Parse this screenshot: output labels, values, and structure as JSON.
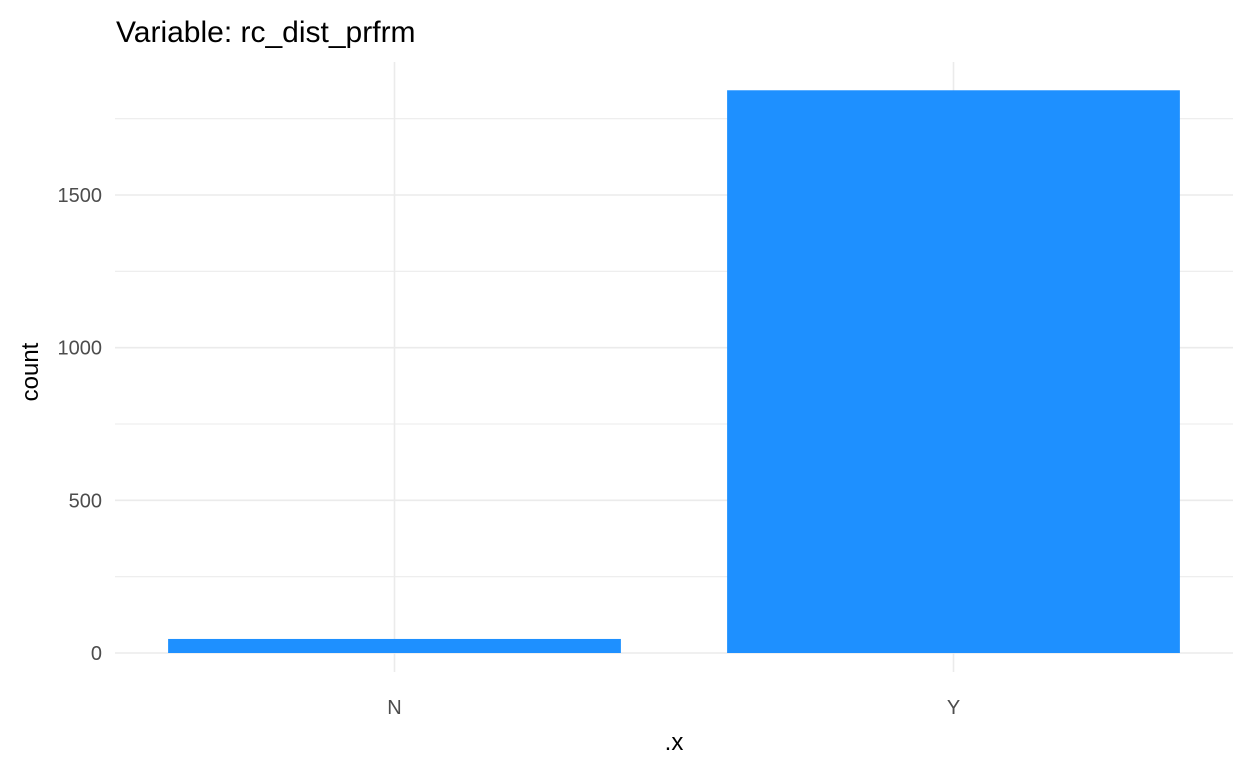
{
  "chart_data": {
    "type": "bar",
    "title": "Variable: rc_dist_prfrm",
    "xlabel": ".x",
    "ylabel": "count",
    "categories": [
      "N",
      "Y"
    ],
    "values": [
      46,
      1843
    ],
    "ylim": [
      0,
      1843
    ],
    "yticks": [
      0,
      500,
      1000,
      1500
    ],
    "ytick_labels": [
      "0",
      "500",
      "1000",
      "1500"
    ],
    "bar_color": "#1E90FF",
    "grid": true,
    "grid_color": "#EBEBEB",
    "legend": "none"
  }
}
